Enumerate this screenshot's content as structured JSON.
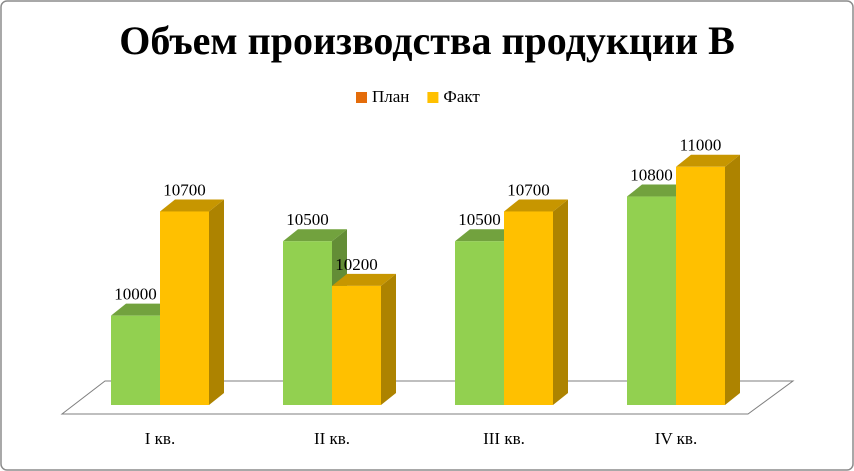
{
  "chart_data": {
    "type": "bar3d",
    "title": "Объем производства продукции В",
    "categories": [
      "I кв.",
      "II кв.",
      "III кв.",
      "IV кв."
    ],
    "series": [
      {
        "name": "План",
        "color": "#92d050",
        "legend_color": "#e46c0a",
        "values": [
          10000,
          10500,
          10500,
          10800
        ]
      },
      {
        "name": "Факт",
        "color": "#ffc000",
        "legend_color": "#ffc000",
        "values": [
          10700,
          10200,
          10700,
          11000
        ]
      }
    ],
    "ylim": [
      9400,
      11200
    ],
    "legend": "top"
  }
}
